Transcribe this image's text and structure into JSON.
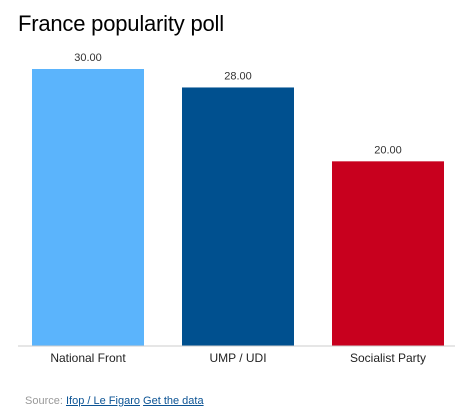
{
  "chart_data": {
    "type": "bar",
    "title": "France popularity poll",
    "categories": [
      "National Front",
      "UMP / UDI",
      "Socialist Party"
    ],
    "values": [
      30.0,
      28.0,
      20.0
    ],
    "value_labels": [
      "30.00",
      "28.00",
      "20.00"
    ],
    "colors": [
      "#5bb4fc",
      "#00508f",
      "#c8001e"
    ],
    "ylim": [
      0,
      30
    ],
    "grid": false,
    "xlabel": "",
    "ylabel": ""
  },
  "footer": {
    "source_label": "Source:",
    "source_link": "Ifop / Le Figaro",
    "data_link": "Get the data"
  }
}
